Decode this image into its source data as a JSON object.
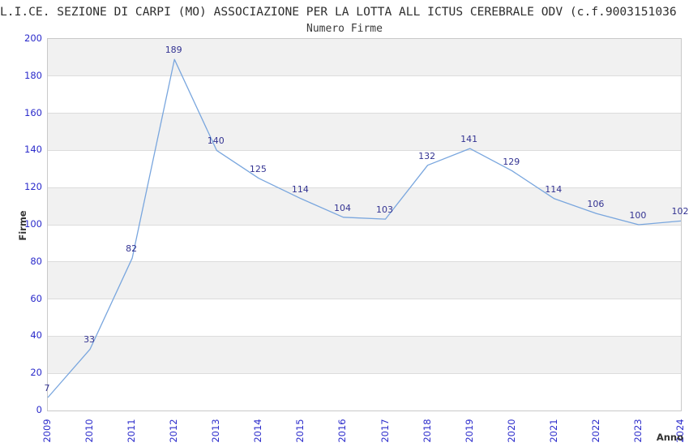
{
  "header": {
    "title": "L.I.CE. SEZIONE DI CARPI (MO) ASSOCIAZIONE PER LA LOTTA ALL ICTUS CEREBRALE ODV (c.f.9003151036",
    "subtitle": "Numero Firme"
  },
  "chart_data": {
    "type": "line",
    "title": "Numero Firme",
    "xlabel": "Anno",
    "ylabel": "Firme",
    "categories": [
      "2009",
      "2010",
      "2011",
      "2012",
      "2013",
      "2014",
      "2015",
      "2016",
      "2017",
      "2018",
      "2019",
      "2020",
      "2021",
      "2022",
      "2023",
      "2024"
    ],
    "values": [
      7,
      33,
      82,
      189,
      140,
      125,
      114,
      104,
      103,
      132,
      141,
      129,
      114,
      106,
      100,
      102
    ],
    "ylim": [
      0,
      200
    ],
    "ytick_step": 20,
    "legend": "none",
    "grid": "alternating-horizontal-bands",
    "data_labels": true,
    "colors": {
      "line": "#79A6DE",
      "tick_label": "#2B2BCB",
      "data_label": "#333392",
      "band_gray": "#F1F1F1",
      "band_white": "#FFFFFF",
      "grid_line": "#DCDCDC",
      "plot_border": "#C9C9C9",
      "title_text": "#2E2E2E",
      "axis_title_text": "#333333"
    }
  }
}
